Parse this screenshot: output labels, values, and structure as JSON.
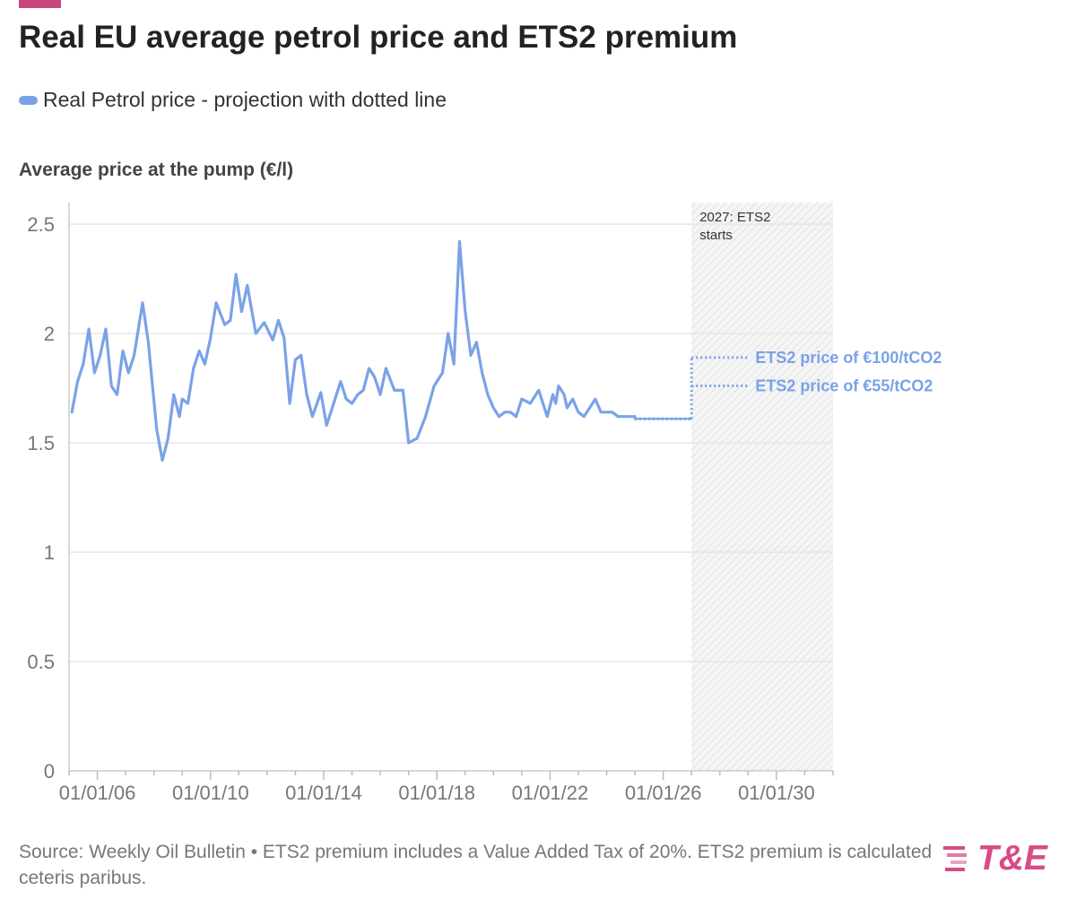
{
  "header": {
    "title": "Real EU average petrol price and ETS2 premium"
  },
  "legend": {
    "label": "Real Petrol price - projection with dotted line"
  },
  "colors": {
    "accent": "#c8467e",
    "line": "#7aa2e8",
    "brand": "#d84b86",
    "grid": "#e6e6e6"
  },
  "chart_data": {
    "type": "line",
    "ylabel": "Average price at the pump (€/l)",
    "xlabel": "",
    "ylim": [
      0,
      2.5
    ],
    "xlim": [
      2005,
      2032
    ],
    "yticks": [
      0,
      0.5,
      1,
      1.5,
      2,
      2.5
    ],
    "ytick_labels": [
      "0",
      "0.5",
      "1",
      "1.5",
      "2",
      "2.5"
    ],
    "xticks": [
      2006,
      2010,
      2014,
      2018,
      2022,
      2026,
      2030
    ],
    "xtick_labels": [
      "01/01/06",
      "01/01/10",
      "01/01/14",
      "01/01/18",
      "01/01/22",
      "01/01/26",
      "01/01/30"
    ],
    "grid": true,
    "series": [
      {
        "name": "Real Petrol price",
        "style": "solid",
        "x": [
          2005.1,
          2005.3,
          2005.5,
          2005.7,
          2005.9,
          2006.1,
          2006.3,
          2006.5,
          2006.7,
          2006.9,
          2007.1,
          2007.3,
          2007.6,
          2007.8,
          2008.1,
          2008.3,
          2008.5,
          2008.7,
          2008.9,
          2009.0,
          2009.2,
          2009.4,
          2009.6,
          2009.8,
          2010.0,
          2010.2,
          2010.5,
          2010.7,
          2010.9,
          2011.1,
          2011.3,
          2011.6,
          2011.9,
          2012.2,
          2012.4,
          2012.6,
          2012.8,
          2013.0,
          2013.2,
          2013.4,
          2013.6,
          2013.9,
          2014.1,
          2014.3,
          2014.6,
          2014.8,
          2015.0,
          2015.2,
          2015.4,
          2015.6,
          2015.8,
          2016.0,
          2016.2,
          2016.5,
          2016.8,
          2017.0,
          2017.3,
          2017.6,
          2017.9,
          2018.2,
          2018.4,
          2018.6,
          2018.8,
          2019.0,
          2019.2,
          2019.4,
          2019.6,
          2019.8,
          2020.0,
          2020.2,
          2020.4,
          2020.6,
          2020.8,
          2021.0,
          2021.3,
          2021.6,
          2021.9,
          2022.1,
          2022.2,
          2022.3,
          2022.4,
          2022.5,
          2022.6,
          2022.8,
          2023.0,
          2023.2,
          2023.4,
          2023.6,
          2023.8,
          2024.0,
          2024.2,
          2024.4,
          2024.6,
          2024.8,
          2025.0
        ],
        "y": [
          1.64,
          1.78,
          1.86,
          2.02,
          1.82,
          1.9,
          2.02,
          1.76,
          1.72,
          1.92,
          1.82,
          1.9,
          2.14,
          1.96,
          1.56,
          1.42,
          1.52,
          1.72,
          1.62,
          1.7,
          1.68,
          1.84,
          1.92,
          1.86,
          1.98,
          2.14,
          2.04,
          2.06,
          2.27,
          2.1,
          2.22,
          2.0,
          2.05,
          1.97,
          2.06,
          1.98,
          1.68,
          1.88,
          1.9,
          1.72,
          1.62,
          1.73,
          1.58,
          1.66,
          1.78,
          1.7,
          1.68,
          1.72,
          1.74,
          1.84,
          1.8,
          1.72,
          1.84,
          1.74,
          1.74,
          1.5,
          1.52,
          1.62,
          1.76,
          1.82,
          2.0,
          1.86,
          2.42,
          2.1,
          1.9,
          1.96,
          1.82,
          1.72,
          1.66,
          1.62,
          1.64,
          1.64,
          1.62,
          1.7,
          1.68,
          1.74,
          1.62,
          1.72,
          1.68,
          1.76,
          1.74,
          1.72,
          1.66,
          1.7,
          1.64,
          1.62,
          1.66,
          1.7,
          1.64,
          1.64,
          1.64,
          1.62,
          1.62,
          1.62,
          1.62
        ]
      },
      {
        "name": "Projection",
        "style": "dotted",
        "x": [
          2025.0,
          2027.0
        ],
        "y": [
          1.61,
          1.61
        ]
      }
    ],
    "premiums": [
      {
        "label": "ETS2 price of €100/tCO2",
        "value": 1.89
      },
      {
        "label": "ETS2 price of €55/tCO2",
        "value": 1.76
      }
    ],
    "premium_start_x": 2027.0,
    "premium_label_end_x": 2029.0,
    "shaded_region": {
      "x_start": 2027.0,
      "x_end": 2032.0,
      "label": "2027: ETS2 starts",
      "label_lines": [
        "2027: ETS2",
        "starts"
      ]
    }
  },
  "footer": {
    "source": "Source: Weekly Oil Bulletin • ETS2 premium includes a Value Added Tax of 20%. ETS2 premium is calculated ceteris paribus.",
    "logo_text": "T&E"
  }
}
